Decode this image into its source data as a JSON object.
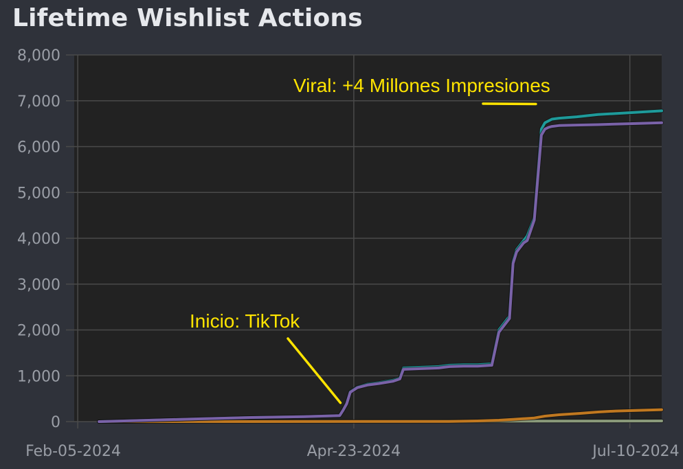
{
  "chart_data": {
    "type": "line",
    "title": "Lifetime Wishlist Actions",
    "xlabel": "",
    "ylabel": "",
    "ylim": [
      0,
      8000
    ],
    "xlim": [
      "2024-02-04",
      "2024-07-19"
    ],
    "x_ticks": [
      "Feb-05-2024",
      "Apr-23-2024",
      "Jul-10-2024"
    ],
    "y_ticks": [
      "0",
      "1,000",
      "2,000",
      "3,000",
      "4,000",
      "5,000",
      "6,000",
      "7,000",
      "8,000"
    ],
    "grid": true,
    "colors": {
      "background": "#2f323a",
      "plot_bg": "#222222",
      "grid": "#4a4a4a",
      "axis_text": "#9a9ea6",
      "annotation": "#ffe400"
    },
    "series": [
      {
        "color": "#1e9a9a",
        "x": [
          "2024-02-11",
          "2024-02-25",
          "2024-03-10",
          "2024-03-25",
          "2024-04-09",
          "2024-04-19",
          "2024-04-20",
          "2024-04-21",
          "2024-04-22",
          "2024-04-24",
          "2024-04-27",
          "2024-04-30",
          "2024-05-04",
          "2024-05-06",
          "2024-05-07",
          "2024-05-10",
          "2024-05-17",
          "2024-05-20",
          "2024-05-24",
          "2024-05-28",
          "2024-06-01",
          "2024-06-03",
          "2024-06-06",
          "2024-06-07",
          "2024-06-08",
          "2024-06-10",
          "2024-06-11",
          "2024-06-13",
          "2024-06-15",
          "2024-06-16",
          "2024-06-17",
          "2024-06-18",
          "2024-06-20",
          "2024-06-25",
          "2024-07-01",
          "2024-07-10",
          "2024-07-19"
        ],
        "values": [
          0,
          30,
          60,
          90,
          110,
          130,
          250,
          400,
          650,
          750,
          820,
          850,
          900,
          950,
          1170,
          1180,
          1200,
          1230,
          1240,
          1240,
          1260,
          2000,
          2300,
          3500,
          3750,
          3950,
          4050,
          4450,
          6380,
          6520,
          6560,
          6600,
          6620,
          6650,
          6700,
          6740,
          6780
        ]
      },
      {
        "color": "#7a62a8",
        "x": [
          "2024-02-11",
          "2024-02-25",
          "2024-03-10",
          "2024-03-25",
          "2024-04-09",
          "2024-04-19",
          "2024-04-20",
          "2024-04-21",
          "2024-04-22",
          "2024-04-24",
          "2024-04-27",
          "2024-04-30",
          "2024-05-04",
          "2024-05-06",
          "2024-05-07",
          "2024-05-10",
          "2024-05-17",
          "2024-05-20",
          "2024-05-24",
          "2024-05-28",
          "2024-06-01",
          "2024-06-03",
          "2024-06-06",
          "2024-06-07",
          "2024-06-08",
          "2024-06-10",
          "2024-06-11",
          "2024-06-13",
          "2024-06-15",
          "2024-06-16",
          "2024-06-17",
          "2024-06-18",
          "2024-06-20",
          "2024-06-25",
          "2024-07-01",
          "2024-07-10",
          "2024-07-19"
        ],
        "values": [
          0,
          30,
          60,
          90,
          110,
          130,
          250,
          390,
          640,
          740,
          800,
          830,
          880,
          930,
          1140,
          1150,
          1170,
          1200,
          1210,
          1210,
          1230,
          1950,
          2250,
          3450,
          3700,
          3900,
          3950,
          4400,
          6250,
          6380,
          6420,
          6440,
          6460,
          6470,
          6480,
          6500,
          6520
        ]
      },
      {
        "color": "#c07820",
        "x": [
          "2024-02-11",
          "2024-05-20",
          "2024-05-28",
          "2024-06-03",
          "2024-06-07",
          "2024-06-13",
          "2024-06-16",
          "2024-06-20",
          "2024-06-26",
          "2024-07-01",
          "2024-07-06",
          "2024-07-10",
          "2024-07-19"
        ],
        "values": [
          0,
          5,
          15,
          30,
          50,
          80,
          120,
          150,
          180,
          210,
          230,
          240,
          260
        ]
      },
      {
        "color": "#8a9a7a",
        "x": [
          "2024-02-11",
          "2024-04-23",
          "2024-06-01",
          "2024-07-19"
        ],
        "values": [
          0,
          5,
          10,
          15
        ]
      }
    ],
    "annotations": [
      {
        "text": "Inicio: TikTok",
        "x": "2024-04-20",
        "y": 200
      },
      {
        "text": "Viral: +4 Millones Impresiones",
        "x": "2024-06-15",
        "y": 6450
      }
    ]
  }
}
